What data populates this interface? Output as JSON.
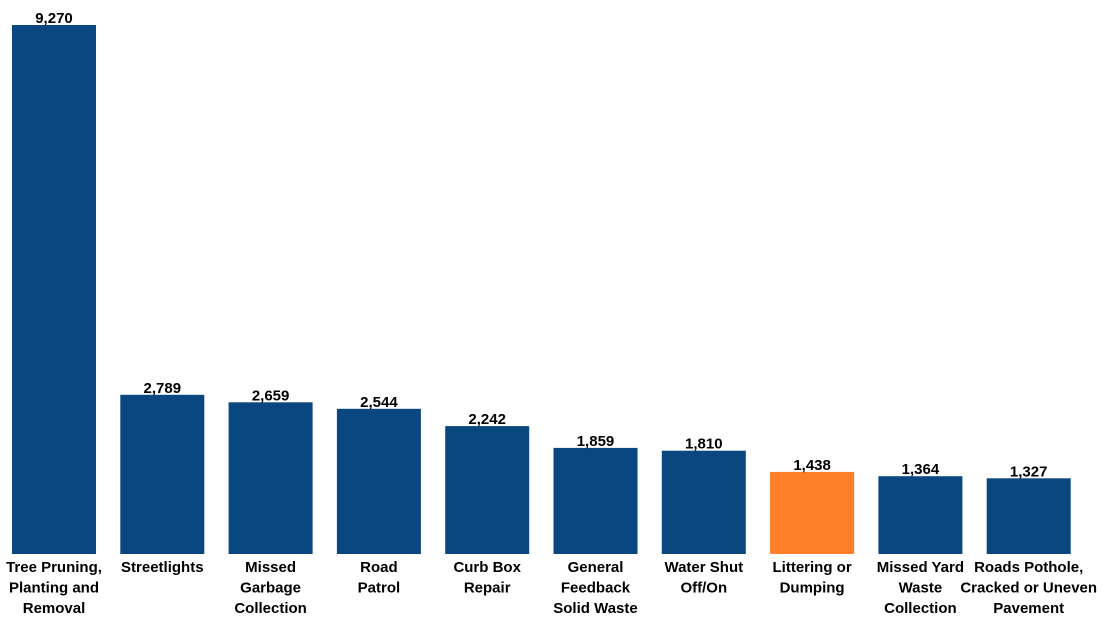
{
  "chart_data": {
    "type": "bar",
    "title": "",
    "xlabel": "",
    "ylabel": "",
    "ylim": [
      0,
      9270
    ],
    "grid": false,
    "legend": "none",
    "categories": [
      [
        "Tree Pruning,",
        "Planting and",
        "Removal"
      ],
      [
        "Streetlights"
      ],
      [
        "Missed",
        "Garbage",
        "Collection"
      ],
      [
        "Road",
        "Patrol"
      ],
      [
        "Curb Box",
        "Repair"
      ],
      [
        "General",
        "Feedback",
        "Solid Waste"
      ],
      [
        "Water Shut",
        "Off/On"
      ],
      [
        "Littering or",
        "Dumping"
      ],
      [
        "Missed Yard",
        "Waste",
        "Collection"
      ],
      [
        "Roads Pothole,",
        "Cracked or Uneven",
        "Pavement"
      ]
    ],
    "values": [
      9270,
      2789,
      2659,
      2544,
      2242,
      1859,
      1810,
      1438,
      1364,
      1327
    ],
    "value_labels": [
      "9,270",
      "2,789",
      "2,659",
      "2,544",
      "2,242",
      "1,859",
      "1,810",
      "1,438",
      "1,364",
      "1,327"
    ],
    "highlight_index": 7,
    "colors": {
      "bar": "#0a4780",
      "highlight": "#fd7f28",
      "text": "#000000"
    }
  }
}
